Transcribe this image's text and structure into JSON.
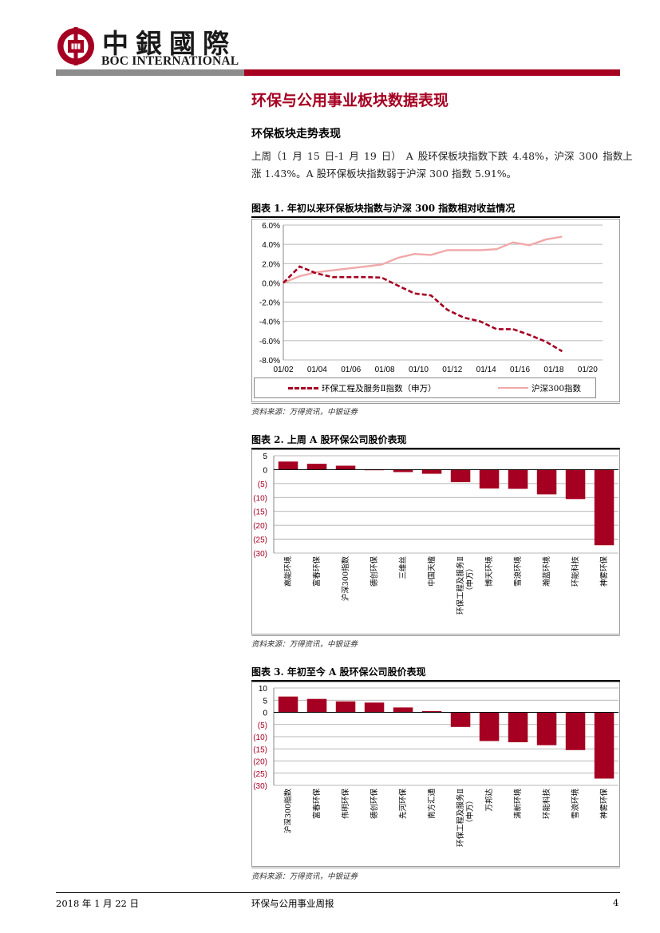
{
  "header": {
    "logo_cn": "中銀國際",
    "logo_en": "BOC INTERNATIONAL"
  },
  "colors": {
    "brand_red": "#a50021",
    "line2": "#f0a8a8",
    "line1": "#a50021",
    "bar": "#a50021"
  },
  "section_title": "环保与公用事业板块数据表现",
  "subsection_title": "环保板块走势表现",
  "paragraph": {
    "line1": "上周（1 月 15 日-1 月 19 日） A 股环保板块指数下跌 4.48%，沪深 300 指数上",
    "line2": "涨 1.43%。A 股环保板块指数弱于沪深 300 指数 5.91%。"
  },
  "fig1": {
    "title": "图表 1. 年初以来环保板块指数与沪深 300 指数相对收益情况",
    "source": "资料来源：万得资讯，中银证券"
  },
  "fig2": {
    "title": "图表 2. 上周 A 股环保公司股价表现",
    "source": "资料来源：万得资讯，中银证券"
  },
  "fig3": {
    "title": "图表 3. 年初至今 A 股环保公司股价表现",
    "source": "资料来源：万得资讯，中银证券"
  },
  "footer": {
    "date": "2018 年 1 月 22 日",
    "report": "环保与公用事业周报",
    "page": "4"
  },
  "chart_data": [
    {
      "type": "line",
      "title": "年初以来环保板块指数与沪深 300 指数相对收益情况",
      "x_ticks": [
        "01/02",
        "01/04",
        "01/06",
        "01/08",
        "01/10",
        "01/12",
        "01/14",
        "01/16",
        "01/18",
        "01/20"
      ],
      "y_ticks": [
        "6.0%",
        "4.0%",
        "2.0%",
        "0.0%",
        "-2.0%",
        "-4.0%",
        "-6.0%",
        "-8.0%"
      ],
      "ylim": [
        -8,
        6
      ],
      "xlim": [
        0,
        18
      ],
      "series": [
        {
          "name": "环保工程及服务Ⅱ指数（申万）",
          "style": "dashed",
          "x": [
            0,
            1,
            2,
            3,
            4,
            5,
            6,
            7,
            8,
            9,
            10,
            11,
            12,
            13,
            14,
            15,
            16,
            17
          ],
          "y": [
            0,
            1.7,
            1.0,
            0.6,
            0.6,
            0.6,
            0.55,
            -0.3,
            -1.1,
            -1.3,
            -2.8,
            -3.6,
            -4.0,
            -4.8,
            -4.8,
            -5.4,
            -6.1,
            -7.1
          ]
        },
        {
          "name": "沪深300指数",
          "style": "solid",
          "x": [
            0,
            1,
            2,
            3,
            4,
            5,
            6,
            7,
            8,
            9,
            10,
            11,
            12,
            13,
            14,
            15,
            16,
            17
          ],
          "y": [
            0,
            0.7,
            1.1,
            1.3,
            1.5,
            1.7,
            1.9,
            2.6,
            3.0,
            2.9,
            3.4,
            3.4,
            3.4,
            3.5,
            4.2,
            3.9,
            4.5,
            4.8
          ]
        }
      ]
    },
    {
      "type": "bar",
      "title": "上周 A 股环保公司股价表现",
      "y_ticks": [
        "5",
        "0",
        "(5)",
        "(10)",
        "(15)",
        "(20)",
        "(25)",
        "(30)"
      ],
      "ylim": [
        -30,
        5
      ],
      "categories": [
        {
          "label": "高能环境"
        },
        {
          "label": "富春环保"
        },
        {
          "label": "沪深300指数"
        },
        {
          "label": "德创环保"
        },
        {
          "label": "三维丝"
        },
        {
          "label": "中国天楹"
        },
        {
          "label": "环保工程及服务Ⅱ",
          "label2": "（申万）"
        },
        {
          "label": "博天环境"
        },
        {
          "label": "雪浪环境"
        },
        {
          "label": "瀚蓝环境"
        },
        {
          "label": "环能科技"
        },
        {
          "label": "神雾环保"
        }
      ],
      "values": [
        2.9,
        2.1,
        1.4,
        0,
        -0.9,
        -1.5,
        -4.5,
        -6.8,
        -6.9,
        -8.9,
        -10.6,
        -27.2
      ]
    },
    {
      "type": "bar",
      "title": "年初至今 A 股环保公司股价表现",
      "y_ticks": [
        "10",
        "5",
        "0",
        "(5)",
        "(10)",
        "(15)",
        "(20)",
        "(25)",
        "(30)"
      ],
      "ylim": [
        -30,
        10
      ],
      "categories": [
        {
          "label": "沪深300指数"
        },
        {
          "label": "富春环保"
        },
        {
          "label": "伟明环保"
        },
        {
          "label": "德创环保"
        },
        {
          "label": "先河环保"
        },
        {
          "label": "南方汇通"
        },
        {
          "label": "环保工程及服务Ⅱ",
          "label2": "（申万）"
        },
        {
          "label": "万邦达"
        },
        {
          "label": "清新环境"
        },
        {
          "label": "环能科技"
        },
        {
          "label": "雪浪环境"
        },
        {
          "label": "神雾环保"
        }
      ],
      "values": [
        6.5,
        5.5,
        4.5,
        4.0,
        2.0,
        0.5,
        -6.0,
        -11.8,
        -12.3,
        -13.5,
        -15.5,
        -27.2
      ]
    }
  ]
}
